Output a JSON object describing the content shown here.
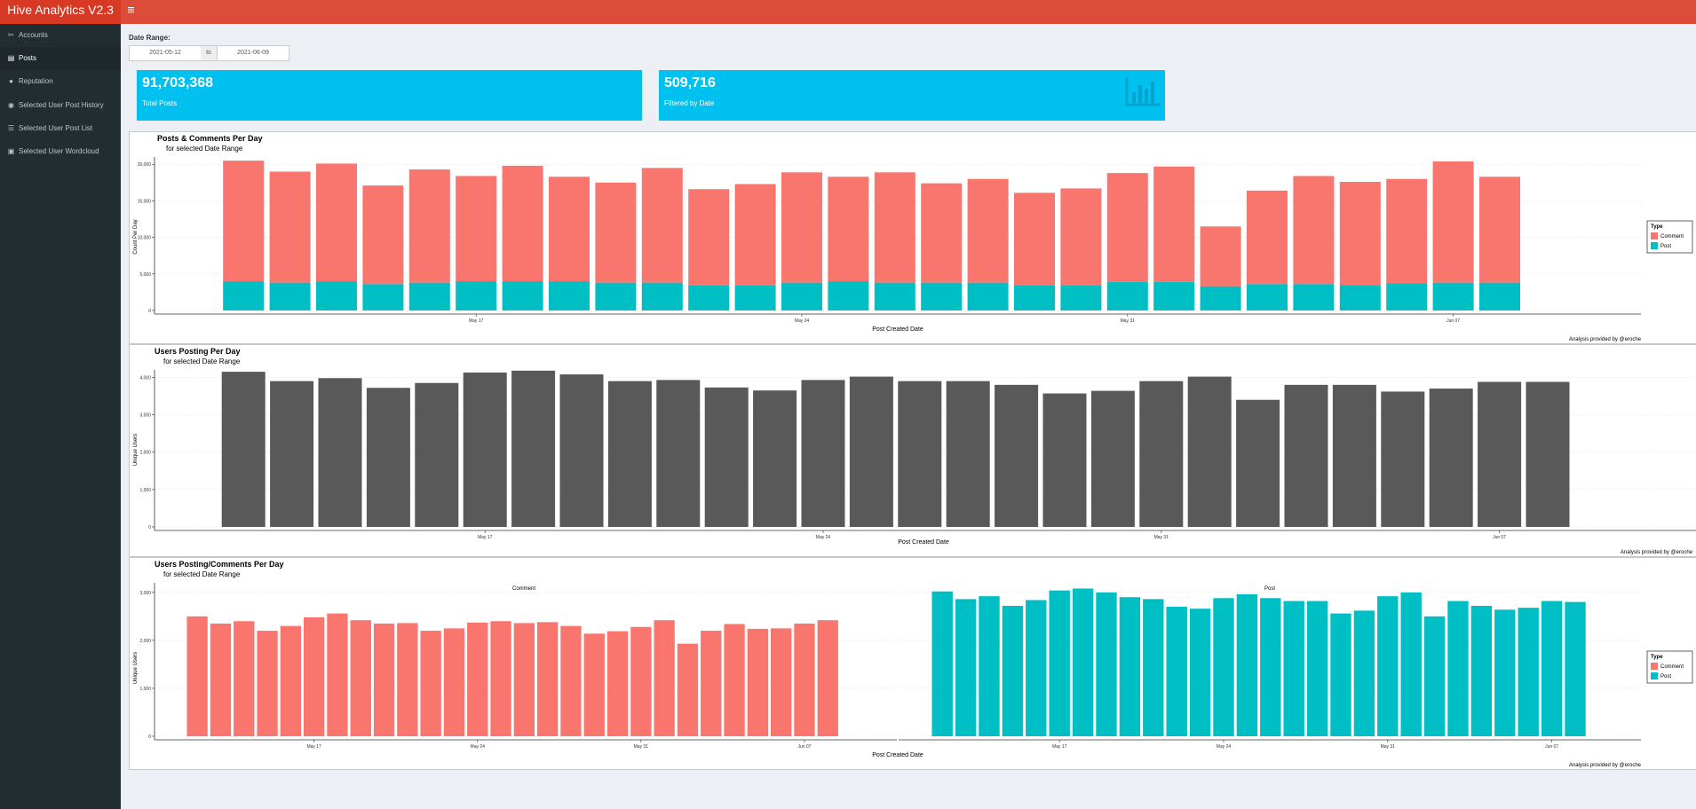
{
  "app": {
    "title": "Hive Analytics V2.3"
  },
  "sidebar": {
    "items": [
      {
        "label": "Accounts",
        "icon": "accounts-icon"
      },
      {
        "label": "Posts",
        "icon": "posts-icon"
      },
      {
        "label": "Reputation",
        "icon": "reputation-icon"
      },
      {
        "label": "Selected User Post History",
        "icon": "user-icon"
      },
      {
        "label": "Selected User Post List",
        "icon": "list-icon"
      },
      {
        "label": "Selected User Wordcloud",
        "icon": "wordcloud-icon"
      }
    ],
    "active": "Posts"
  },
  "filters": {
    "date_range_label": "Date Range:",
    "start": "2021-05-12",
    "separator": "to",
    "end": "2021-06-09"
  },
  "value_boxes": [
    {
      "value": "91,703,368",
      "caption": "Total Posts"
    },
    {
      "value": "509,716",
      "caption": "Filtered by Date",
      "icon": "bar-chart-icon"
    }
  ],
  "colors": {
    "comment": "#f8766d",
    "post": "#00bfc4",
    "users": "#595959",
    "header": "#dd4b39",
    "valuebox": "#00c0ef"
  },
  "chart_data": [
    {
      "type": "bar",
      "stacked": true,
      "title": "Posts & Comments Per Day",
      "subtitle": "for selected Date Range",
      "xlabel": "Post Created Date",
      "ylabel": "Count Per Day",
      "caption": "Analysis provided by @eroche",
      "ylim": [
        0,
        21000
      ],
      "yticks": [
        0,
        5000,
        10000,
        15000,
        20000
      ],
      "ytick_labels": [
        "0",
        "5,000",
        "10,000",
        "15,000",
        "20,000"
      ],
      "xticks": [
        {
          "at": "May 17",
          "index": 5
        },
        {
          "at": "May 24",
          "index": 12
        },
        {
          "at": "May 31",
          "index": 19
        },
        {
          "at": "Jun 07",
          "index": 26
        }
      ],
      "legend": {
        "title": "Type",
        "entries": [
          "Comment",
          "Post"
        ],
        "position": "right"
      },
      "categories": [
        "2021-05-12",
        "2021-05-13",
        "2021-05-14",
        "2021-05-15",
        "2021-05-16",
        "2021-05-17",
        "2021-05-18",
        "2021-05-19",
        "2021-05-20",
        "2021-05-21",
        "2021-05-22",
        "2021-05-23",
        "2021-05-24",
        "2021-05-25",
        "2021-05-26",
        "2021-05-27",
        "2021-05-28",
        "2021-05-29",
        "2021-05-30",
        "2021-05-31",
        "2021-06-01",
        "2021-06-02",
        "2021-06-03",
        "2021-06-04",
        "2021-06-05",
        "2021-06-06",
        "2021-06-07",
        "2021-06-08"
      ],
      "series": [
        {
          "name": "Post",
          "values": [
            4000,
            3800,
            4000,
            3600,
            3800,
            4000,
            4000,
            4000,
            3800,
            3800,
            3400,
            3400,
            3800,
            4000,
            3800,
            3800,
            3800,
            3400,
            3400,
            3900,
            3900,
            3300,
            3600,
            3600,
            3500,
            3700,
            3800,
            3800
          ]
        },
        {
          "name": "Comment",
          "values": [
            16500,
            15200,
            16100,
            13500,
            15500,
            14400,
            15800,
            14300,
            13700,
            15700,
            13200,
            13900,
            15100,
            14300,
            15100,
            13600,
            14200,
            12700,
            13300,
            14900,
            15800,
            8200,
            12800,
            14800,
            14100,
            14300,
            16600,
            14500
          ]
        }
      ]
    },
    {
      "type": "bar",
      "title": "Users Posting Per Day",
      "subtitle": "for selected Date Range",
      "xlabel": "Post Created Date",
      "ylabel": "Unique Users",
      "caption": "Analysis provided by @eroche",
      "ylim": [
        0,
        4200
      ],
      "yticks": [
        0,
        1000,
        2000,
        3000,
        4000
      ],
      "ytick_labels": [
        "0",
        "1,000",
        "2,000",
        "3,000",
        "4,000"
      ],
      "xticks": [
        {
          "at": "May 17",
          "index": 5
        },
        {
          "at": "May 24",
          "index": 12
        },
        {
          "at": "May 31",
          "index": 19
        },
        {
          "at": "Jun 07",
          "index": 26
        }
      ],
      "categories": [
        "2021-05-12",
        "2021-05-13",
        "2021-05-14",
        "2021-05-15",
        "2021-05-16",
        "2021-05-17",
        "2021-05-18",
        "2021-05-19",
        "2021-05-20",
        "2021-05-21",
        "2021-05-22",
        "2021-05-23",
        "2021-05-24",
        "2021-05-25",
        "2021-05-26",
        "2021-05-27",
        "2021-05-28",
        "2021-05-29",
        "2021-05-30",
        "2021-05-31",
        "2021-06-01",
        "2021-06-02",
        "2021-06-03",
        "2021-06-04",
        "2021-06-05",
        "2021-06-06",
        "2021-06-07",
        "2021-06-08"
      ],
      "values": [
        4150,
        3900,
        3980,
        3720,
        3850,
        4130,
        4180,
        4080,
        3900,
        3930,
        3730,
        3650,
        3930,
        4020,
        3900,
        3900,
        3800,
        3570,
        3640,
        3900,
        4020,
        3400,
        3800,
        3800,
        3620,
        3700,
        3880,
        3880
      ]
    },
    {
      "type": "bar",
      "faceted": true,
      "title": "Users Posting/Comments Per Day",
      "subtitle": "for selected Date Range",
      "xlabel": "Post Created Date",
      "ylabel": "Unique Users",
      "caption": "Analysis provided by @eroche",
      "ylim": [
        0,
        3200
      ],
      "yticks": [
        0,
        1000,
        2000,
        3000
      ],
      "ytick_labels": [
        "0",
        "1,000",
        "2,000",
        "3,000"
      ],
      "xticks": [
        {
          "at": "May 17",
          "index": 5
        },
        {
          "at": "May 24",
          "index": 12
        },
        {
          "at": "May 31",
          "index": 19
        },
        {
          "at": "Jun 07",
          "index": 26
        }
      ],
      "legend": {
        "title": "Type",
        "entries": [
          "Comment",
          "Post"
        ],
        "position": "right"
      },
      "categories": [
        "2021-05-12",
        "2021-05-13",
        "2021-05-14",
        "2021-05-15",
        "2021-05-16",
        "2021-05-17",
        "2021-05-18",
        "2021-05-19",
        "2021-05-20",
        "2021-05-21",
        "2021-05-22",
        "2021-05-23",
        "2021-05-24",
        "2021-05-25",
        "2021-05-26",
        "2021-05-27",
        "2021-05-28",
        "2021-05-29",
        "2021-05-30",
        "2021-05-31",
        "2021-06-01",
        "2021-06-02",
        "2021-06-03",
        "2021-06-04",
        "2021-06-05",
        "2021-06-06",
        "2021-06-07",
        "2021-06-08"
      ],
      "series": [
        {
          "name": "Comment",
          "values": [
            2500,
            2350,
            2400,
            2200,
            2300,
            2480,
            2560,
            2420,
            2350,
            2360,
            2200,
            2250,
            2370,
            2400,
            2360,
            2380,
            2300,
            2140,
            2190,
            2280,
            2420,
            1930,
            2200,
            2340,
            2240,
            2250,
            2350,
            2420
          ]
        },
        {
          "name": "Post",
          "values": [
            3020,
            2860,
            2920,
            2720,
            2840,
            3040,
            3080,
            3000,
            2900,
            2860,
            2700,
            2660,
            2880,
            2960,
            2880,
            2820,
            2820,
            2560,
            2620,
            2920,
            3000,
            2500,
            2820,
            2720,
            2640,
            2680,
            2820,
            2800
          ]
        }
      ]
    }
  ]
}
